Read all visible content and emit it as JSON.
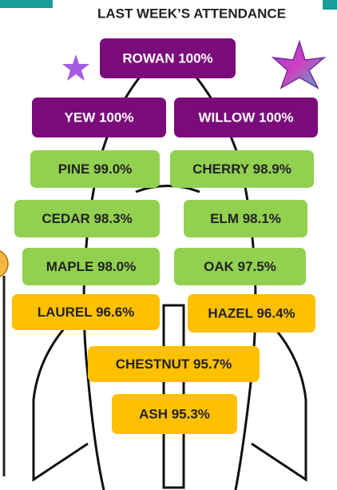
{
  "title": "LAST WEEK’S ATTENDANCE",
  "boxes": [
    {
      "label": "ROWAN 100%"
    },
    {
      "label": "YEW 100%"
    },
    {
      "label": "WILLOW 100%"
    },
    {
      "label": "PINE 99.0%"
    },
    {
      "label": "CHERRY 98.9%"
    },
    {
      "label": "CEDAR 98.3%"
    },
    {
      "label": "ELM 98.1%"
    },
    {
      "label": "MAPLE 98.0%"
    },
    {
      "label": "OAK 97.5%"
    },
    {
      "label": "LAUREL 96.6%"
    },
    {
      "label": "HAZEL 96.4%"
    },
    {
      "label": "CHESTNUT 95.7%"
    },
    {
      "label": "ASH 95.3%"
    }
  ]
}
